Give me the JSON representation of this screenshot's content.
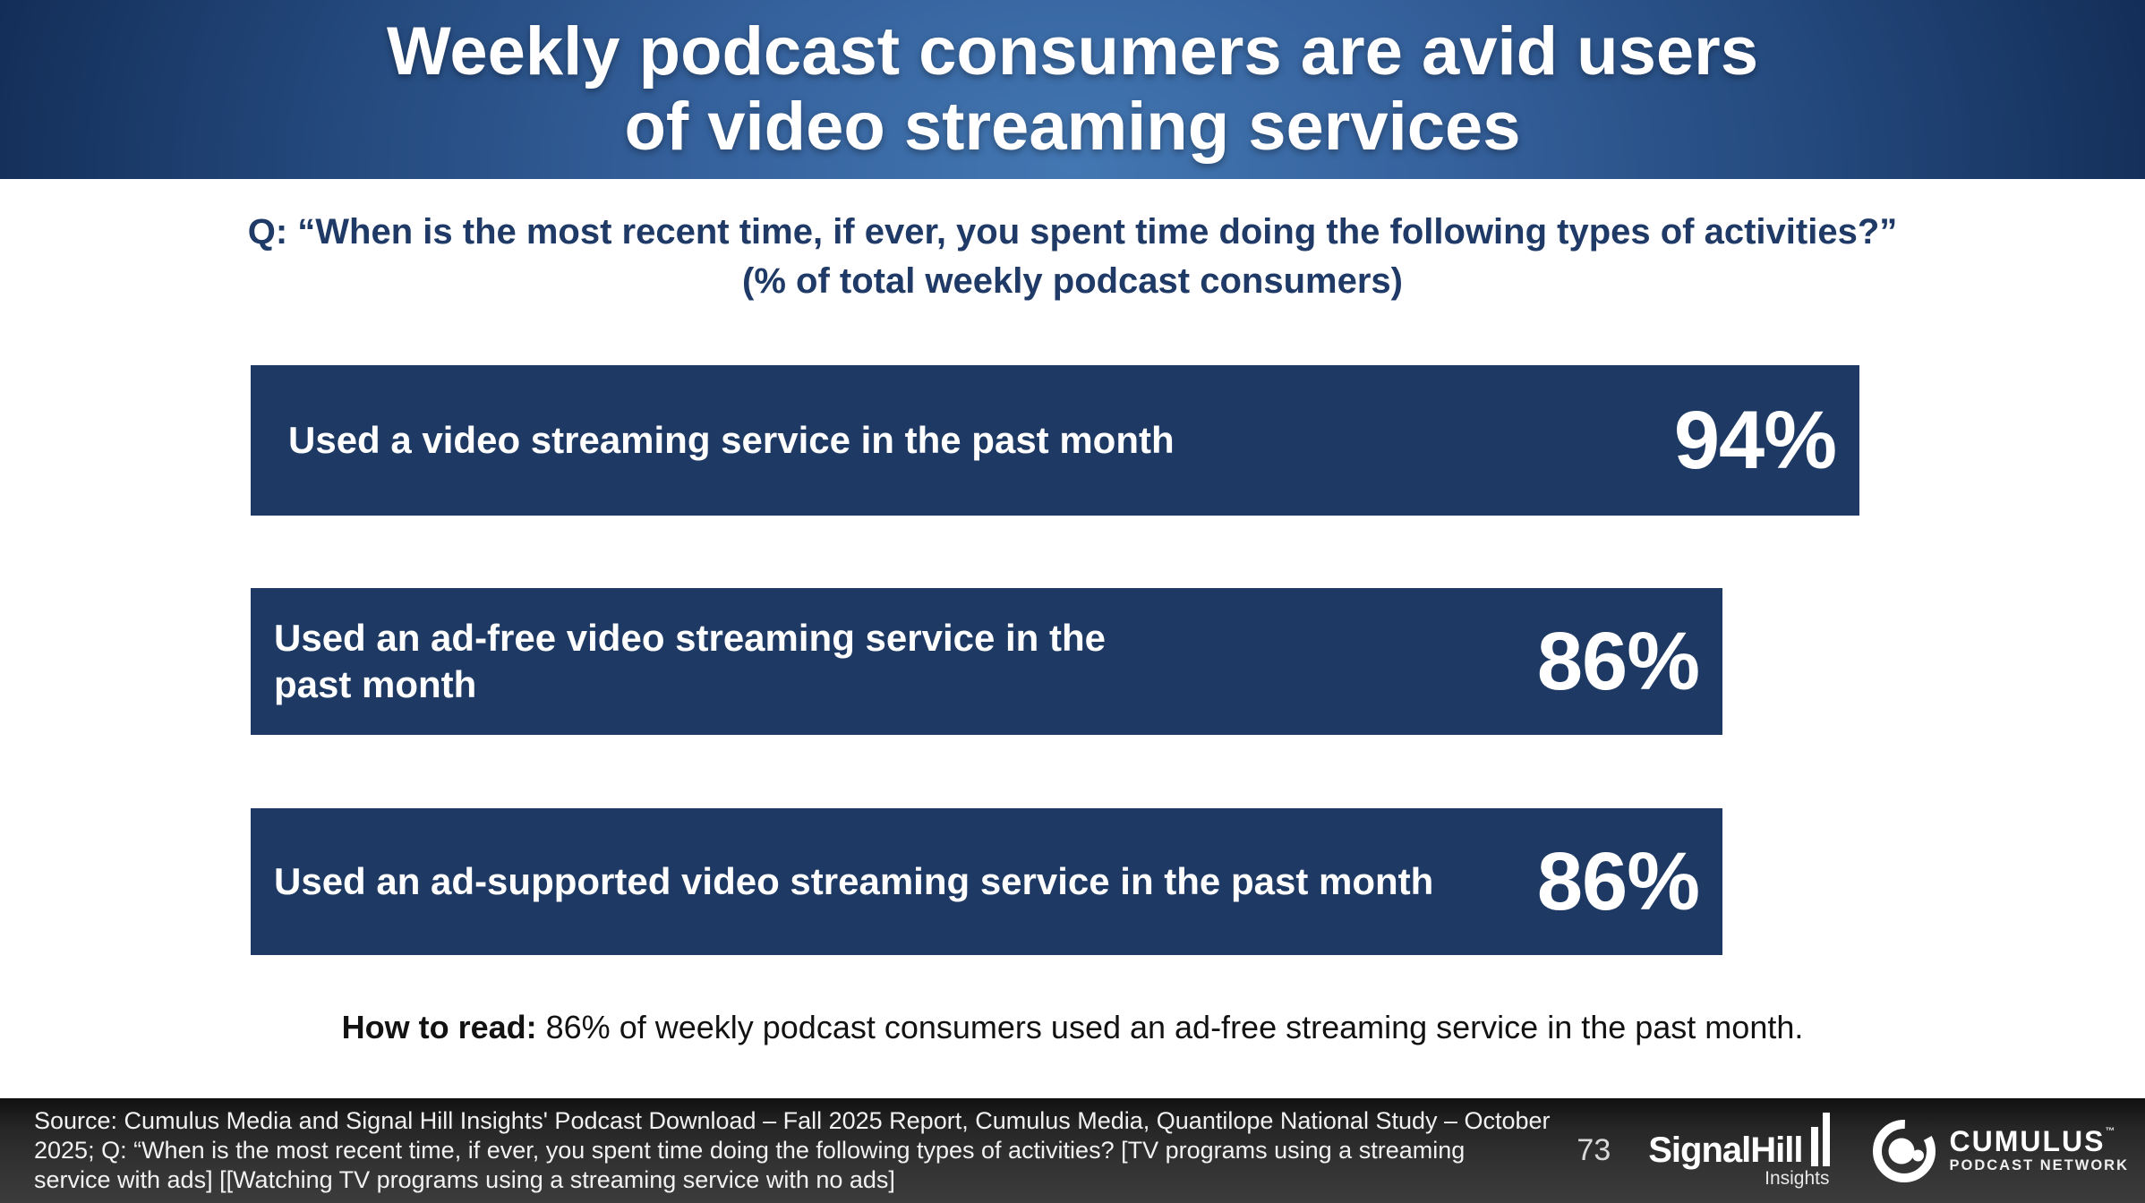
{
  "slide": {
    "title_line1": "Weekly podcast consumers are avid users",
    "title_line2": "of video streaming services",
    "question_line1": "Q: “When is the most recent time, if ever, you spent time doing the following types of activities?”",
    "question_line2": "(% of total weekly podcast consumers)"
  },
  "chart_data": {
    "type": "bar",
    "orientation": "horizontal",
    "title": "Weekly podcast consumers are avid users of video streaming services",
    "subtitle": "% of total weekly podcast consumers",
    "categories": [
      "Used a video streaming service in the past month",
      "Used an ad-free video streaming service in the past month",
      "Used an ad-supported video streaming service in the past month"
    ],
    "values": [
      94,
      86,
      86
    ],
    "value_labels": [
      "94%",
      "86%",
      "86%"
    ],
    "unit": "%",
    "xlim": [
      0,
      100
    ],
    "bar_color": "#1E3A64",
    "value_label_color": "#FFFFFF",
    "grid": false,
    "legend": false
  },
  "how_to_read": {
    "label": "How to read:",
    "text": " 86% of weekly podcast consumers used an ad-free streaming service in the past month."
  },
  "footer": {
    "source_lines": [
      "Source: Cumulus Media and Signal Hill Insights' Podcast Download – Fall 2025 Report, Cumulus Media, Quantilope National Study – October",
      "2025; Q:  “When is the most recent time, if ever, you spent time doing the following types of activities? [TV programs using a streaming",
      "service with ads] [[Watching TV programs using a streaming service with no ads]"
    ],
    "page_number": "73",
    "signalhill": {
      "name": "SignalHill",
      "sub": "Insights"
    },
    "cumulus": {
      "name": "CUMULUS",
      "tm": "™",
      "sub": "PODCAST NETWORK"
    }
  },
  "colors": {
    "bar_navy": "#1E3A64",
    "question_navy": "#1F3A66",
    "header_center_blue": "#4377B2",
    "header_edge_navy": "#0B1C3E",
    "footer_gray": "#333333",
    "text_white": "#FFFFFF"
  }
}
